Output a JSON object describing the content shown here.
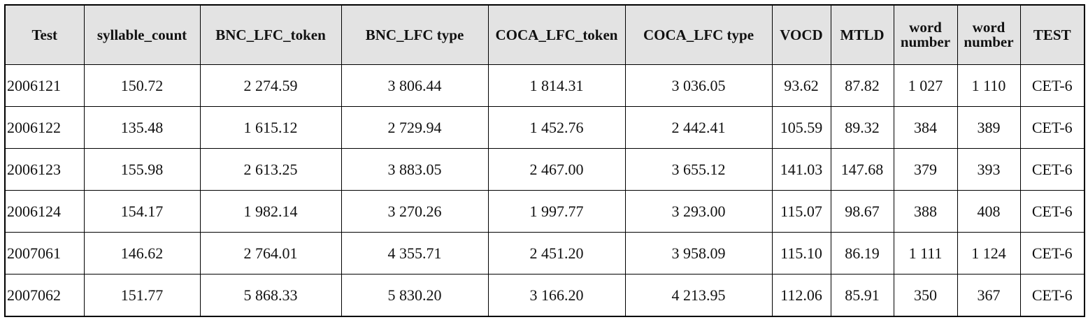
{
  "table": {
    "header": [
      "Test",
      "syllable_count",
      "BNC_LFC_token",
      "BNC_LFC type",
      "COCA_LFC_token",
      "COCA_LFC type",
      "VOCD",
      "MTLD",
      "word number",
      "word number",
      "TEST"
    ],
    "rows": [
      [
        "2006121",
        "150.72",
        "2 274.59",
        "3 806.44",
        "1 814.31",
        "3 036.05",
        "93.62",
        "87.82",
        "1 027",
        "1 110",
        "CET-6"
      ],
      [
        "2006122",
        "135.48",
        "1 615.12",
        "2 729.94",
        "1 452.76",
        "2 442.41",
        "105.59",
        "89.32",
        "384",
        "389",
        "CET-6"
      ],
      [
        "2006123",
        "155.98",
        "2 613.25",
        "3 883.05",
        "2 467.00",
        "3 655.12",
        "141.03",
        "147.68",
        "379",
        "393",
        "CET-6"
      ],
      [
        "2006124",
        "154.17",
        "1 982.14",
        "3 270.26",
        "1 997.77",
        "3 293.00",
        "115.07",
        "98.67",
        "388",
        "408",
        "CET-6"
      ],
      [
        "2007061",
        "146.62",
        "2 764.01",
        "4 355.71",
        "2 451.20",
        "3 958.09",
        "115.10",
        "86.19",
        "1 111",
        "1 124",
        "CET-6"
      ],
      [
        "2007062",
        "151.77",
        "5 868.33",
        "5 830.20",
        "3 166.20",
        "4 213.95",
        "112.06",
        "85.91",
        "350",
        "367",
        "CET-6"
      ]
    ]
  }
}
